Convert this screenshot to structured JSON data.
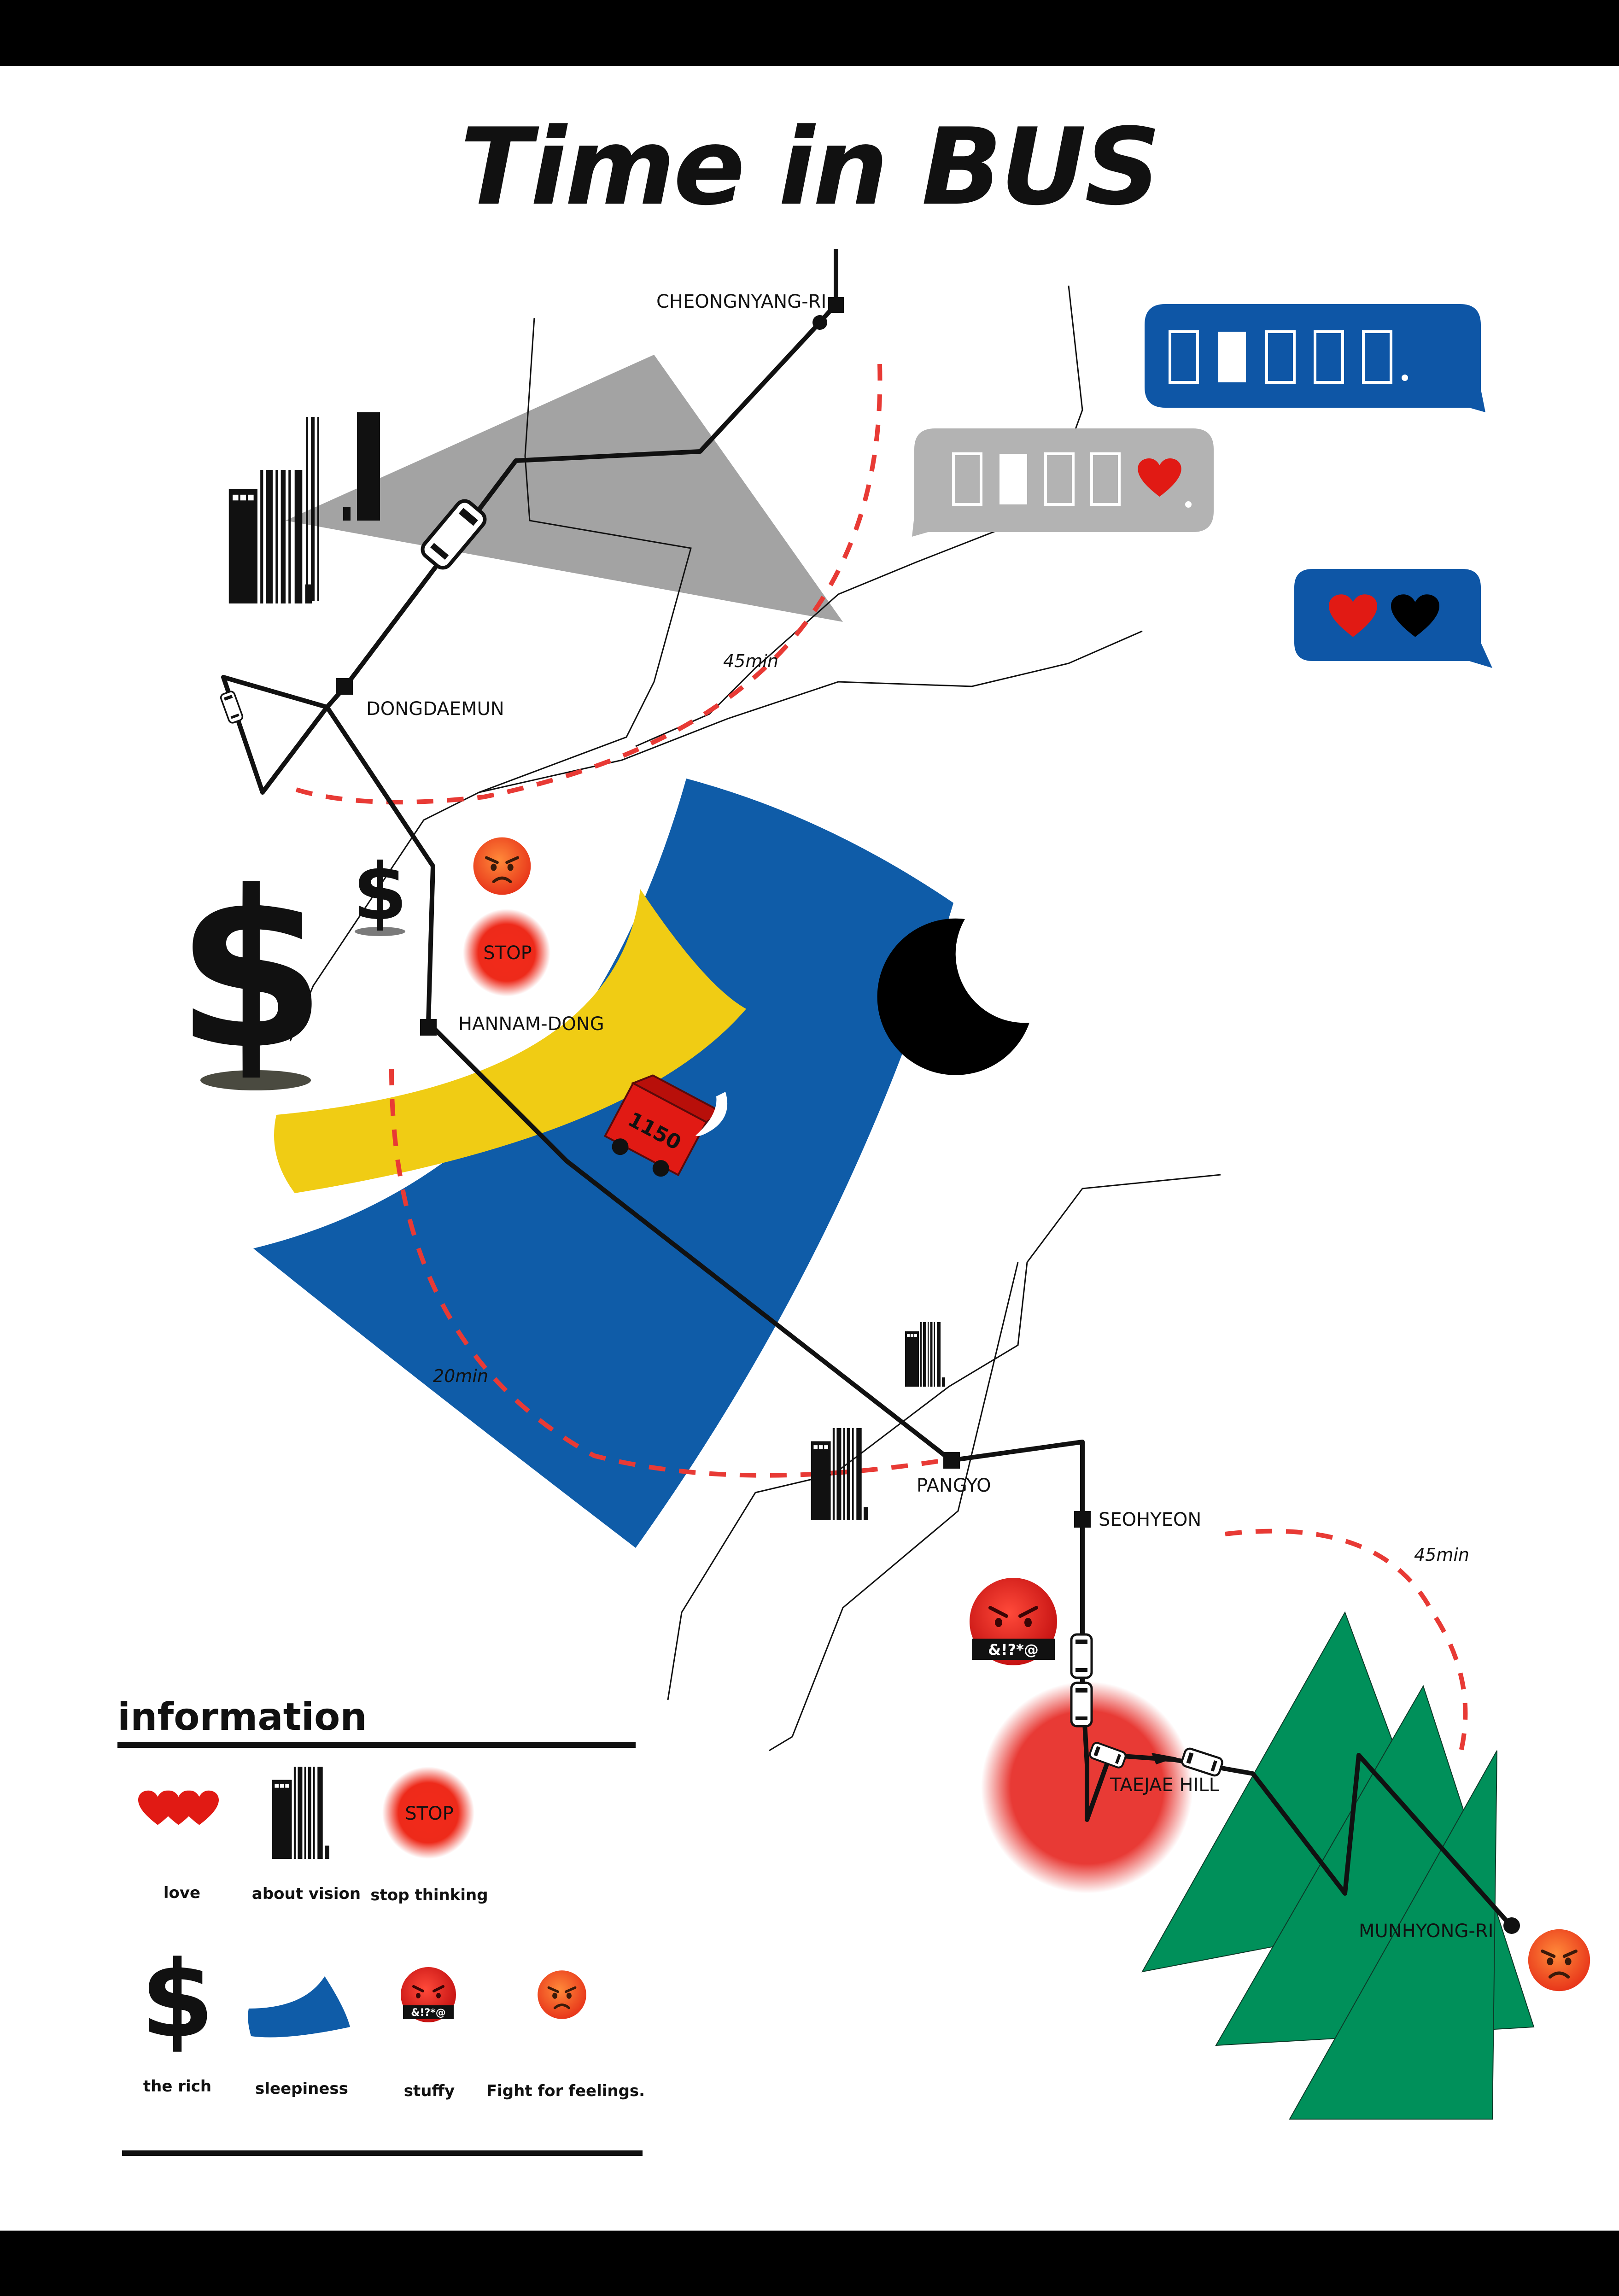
{
  "title": "Time in BUS",
  "stations": {
    "cheongnyangri": "CHEONGNYANG-RI",
    "dongdaemun": "DONGDAEMUN",
    "hannamdong": "HANNAM-DONG",
    "pangyo": "PANGYO",
    "seohyeon": "SEOHYEON",
    "taejae": "TAEJAE HILL",
    "munhyong": "MUNHYONG-RI"
  },
  "durations": {
    "d1": "45min",
    "d2": "20min",
    "d3": "45min"
  },
  "bus_number": "1150",
  "stop_label": "STOP",
  "swear_text": "&!?*@",
  "legend": {
    "heading": "information",
    "items": [
      {
        "label": "love",
        "icon": "hearts-icon"
      },
      {
        "label": "about vision",
        "icon": "barcode-building-icon"
      },
      {
        "label": "stop thinking",
        "icon": "stop-circle-icon"
      },
      {
        "label": "the rich",
        "icon": "dollar-icon"
      },
      {
        "label": "sleepiness",
        "icon": "blue-wave-icon"
      },
      {
        "label": "stuffy",
        "icon": "swearing-face-icon"
      },
      {
        "label": "Fight for feelings.",
        "icon": "angry-face-icon"
      }
    ]
  },
  "colors": {
    "blue": "#0f5ca8",
    "yellow": "#f0cc14",
    "gray": "#a3a3a3",
    "green": "#00905a",
    "red": "#e83a35",
    "bubble_blue": "#0e56a6",
    "bubble_gray": "#b3b3b3"
  }
}
